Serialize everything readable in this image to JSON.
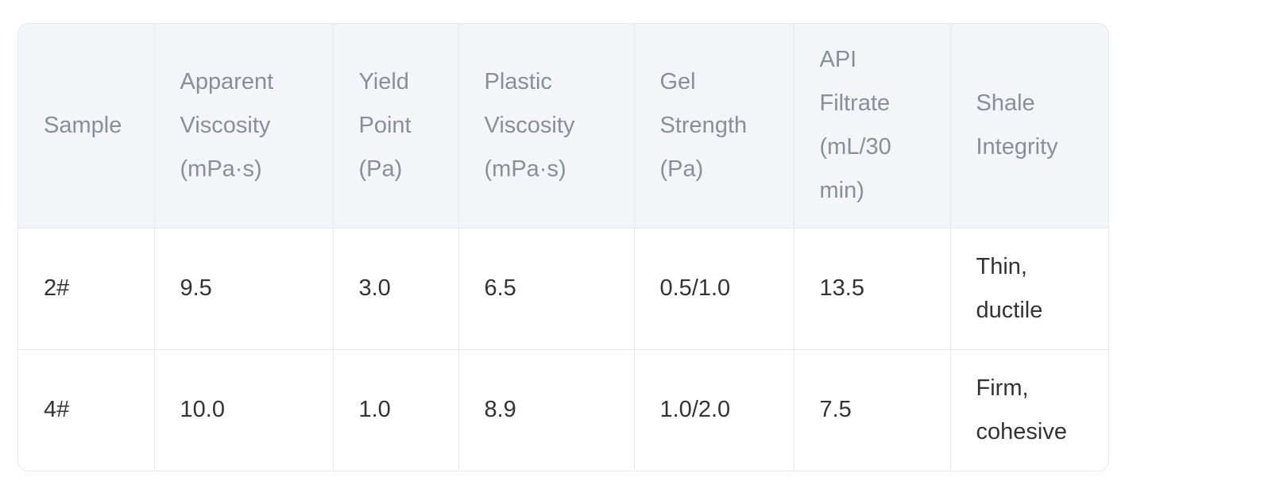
{
  "table": {
    "header": [
      "Sample",
      "Apparent Viscosity (mPa·s)",
      "Yield Point (Pa)",
      "Plastic Viscosity (mPa·s)",
      "Gel Strength (Pa)",
      "API Filtrate (mL/30 min)",
      "Shale Integrity"
    ],
    "rows": [
      [
        "2#",
        "9.5",
        "3.0",
        "6.5",
        "0.5/1.0",
        "13.5",
        "Thin, ductile"
      ],
      [
        "4#",
        "10.0",
        "1.0",
        "8.9",
        "1.0/2.0",
        "7.5",
        "Firm, cohesive"
      ]
    ]
  }
}
